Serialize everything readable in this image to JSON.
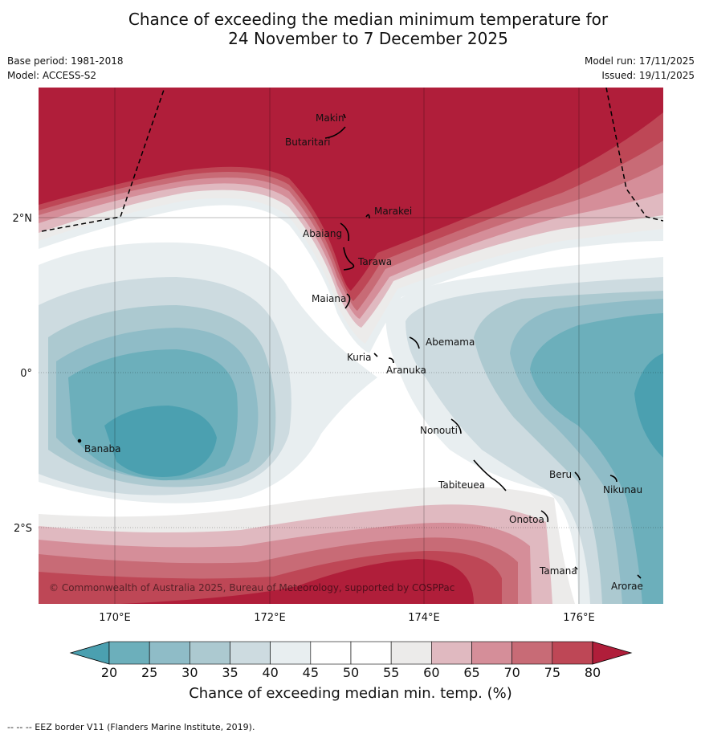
{
  "title": {
    "line1": "Chance of exceeding the median minimum temperature for",
    "line2": "24 November to 7 December 2025"
  },
  "meta": {
    "base_period": "Base period: 1981-2018",
    "model": "Model: ACCESS-S2",
    "model_run": "Model run: 17/11/2025",
    "issued": "Issued: 19/11/2025"
  },
  "map": {
    "lat_labels": [
      "2°N",
      "0°",
      "2°S"
    ],
    "lon_labels": [
      "170°E",
      "172°E",
      "174°E",
      "176°E"
    ],
    "copyright": "© Commonwealth of Australia 2025, Bureau of Meteorology, supported by COSPPac",
    "places": [
      {
        "name": "Makin"
      },
      {
        "name": "Butaritari"
      },
      {
        "name": "Marakei"
      },
      {
        "name": "Abaiang"
      },
      {
        "name": "Tarawa"
      },
      {
        "name": "Maiana"
      },
      {
        "name": "Abemama"
      },
      {
        "name": "Kuria"
      },
      {
        "name": "Aranuka"
      },
      {
        "name": "Nonouti"
      },
      {
        "name": "Banaba"
      },
      {
        "name": "Beru"
      },
      {
        "name": "Tabiteuea"
      },
      {
        "name": "Nikunau"
      },
      {
        "name": "Onotoa"
      },
      {
        "name": "Tamana"
      },
      {
        "name": "Arorae"
      }
    ]
  },
  "legend": {
    "title": "Chance of exceeding median min. temp. (%)",
    "ticks": [
      "20",
      "25",
      "30",
      "35",
      "40",
      "45",
      "50",
      "55",
      "60",
      "65",
      "70",
      "75",
      "80"
    ],
    "colors": [
      "#4ba0b0",
      "#6cafbb",
      "#8fbcc7",
      "#acc9d0",
      "#cddbe0",
      "#e8eef0",
      "#ffffff",
      "#ffffff",
      "#ecebea",
      "#e0b9c0",
      "#d58e99",
      "#c86b76",
      "#be4756",
      "#b01e3a"
    ]
  },
  "footnote": "--  --  -- EEZ border V11 (Flanders Marine Institute, 2019)."
}
